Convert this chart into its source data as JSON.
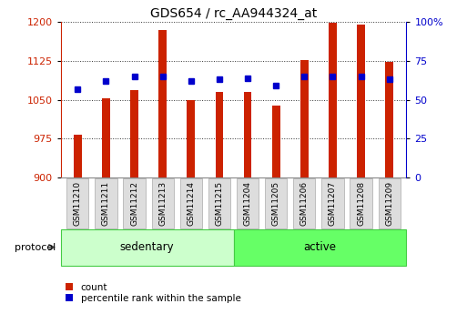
{
  "title": "GDS654 / rc_AA944324_at",
  "samples": [
    "GSM11210",
    "GSM11211",
    "GSM11212",
    "GSM11213",
    "GSM11214",
    "GSM11215",
    "GSM11204",
    "GSM11205",
    "GSM11206",
    "GSM11207",
    "GSM11208",
    "GSM11209"
  ],
  "count_values": [
    983,
    1052,
    1068,
    1185,
    1050,
    1065,
    1065,
    1038,
    1127,
    1198,
    1195,
    1123
  ],
  "percentile_values": [
    57,
    62,
    65,
    65,
    62,
    63,
    64,
    59,
    65,
    65,
    65,
    63
  ],
  "groups": [
    {
      "label": "sedentary",
      "start": 0,
      "end": 6,
      "color": "#ccffcc",
      "edge": "#44cc44"
    },
    {
      "label": "active",
      "start": 6,
      "end": 12,
      "color": "#66ff66",
      "edge": "#44cc44"
    }
  ],
  "bar_color": "#cc2200",
  "dot_color": "#0000cc",
  "ylim_left": [
    900,
    1200
  ],
  "ylim_right": [
    0,
    100
  ],
  "yticks_left": [
    900,
    975,
    1050,
    1125,
    1200
  ],
  "yticks_right": [
    0,
    25,
    50,
    75,
    100
  ],
  "ytick_right_labels": [
    "0",
    "25",
    "50",
    "75",
    "100%"
  ],
  "title_fontsize": 10,
  "background_color": "#ffffff",
  "plot_bg_color": "#ffffff",
  "grid_color": "#333333",
  "tick_label_color_left": "#cc2200",
  "tick_label_color_right": "#0000cc",
  "label_box_color": "#dddddd",
  "label_box_edge": "#aaaaaa"
}
